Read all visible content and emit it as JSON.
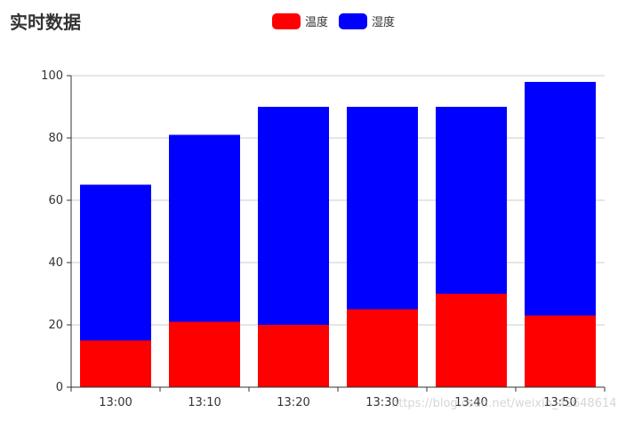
{
  "chart_data": {
    "type": "bar",
    "stacked": true,
    "title": "实时数据",
    "categories": [
      "13:00",
      "13:10",
      "13:20",
      "13:30",
      "13:40",
      "13:50"
    ],
    "series": [
      {
        "name": "温度",
        "color": "#ff0000",
        "values": [
          15,
          21,
          20,
          25,
          30,
          23
        ]
      },
      {
        "name": "湿度",
        "color": "#0000ff",
        "values": [
          50,
          60,
          70,
          65,
          60,
          75
        ]
      }
    ],
    "ylim": [
      0,
      100
    ],
    "yticks": [
      0,
      20,
      40,
      60,
      80,
      100
    ],
    "grid": true,
    "legend_position": "top-center"
  },
  "watermark": "https://blog.csdn.net/weixin_42648614"
}
